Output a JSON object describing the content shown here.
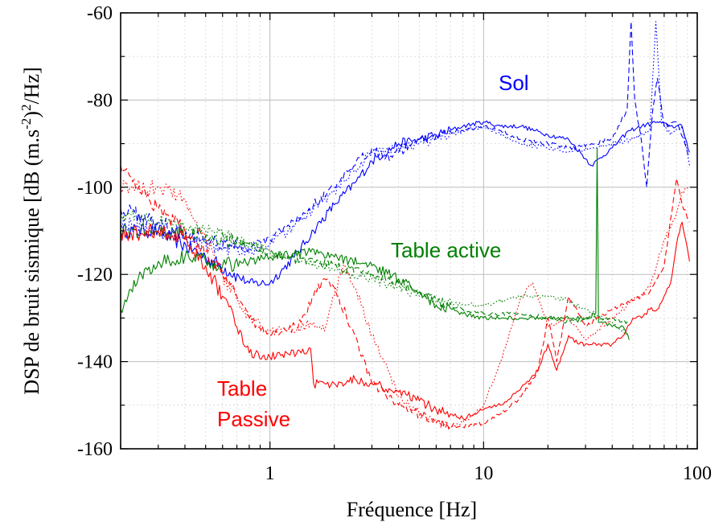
{
  "chart_data": {
    "type": "line",
    "title": "",
    "xlabel": "Fréquence   [Hz]",
    "ylabel_prefix": "DSP de bruit sismique   [dB (m.s",
    "ylabel_sup1": "-2",
    "ylabel_mid": ")",
    "ylabel_sup2": "2",
    "ylabel_suffix": "/Hz]",
    "x_scale": "log",
    "xlim": [
      0.2,
      100
    ],
    "ylim": [
      -160,
      -60
    ],
    "x_tick_labels": [
      "1",
      "10",
      "100"
    ],
    "y_tick_labels": [
      "-60",
      "-80",
      "-100",
      "-120",
      "-140",
      "-160"
    ],
    "grid": "dotted",
    "annotations": [
      {
        "text": "Sol",
        "color": "#0000ff",
        "x": 0.7,
        "y": -78
      },
      {
        "text": "Table active",
        "color": "#008000",
        "x": 0.4,
        "y": -115
      },
      {
        "text": "Table",
        "color": "#ff0000",
        "x": 0.3,
        "y": -143
      },
      {
        "text": "Passive",
        "color": "#ff0000",
        "x": 0.3,
        "y": -151
      }
    ],
    "series": [
      {
        "group": "Sol",
        "color": "#0000ff",
        "style": "solid",
        "x": [
          0.2,
          0.3,
          0.5,
          0.8,
          1.0,
          1.3,
          1.6,
          2.0,
          2.5,
          3.0,
          4.0,
          5.0,
          6.0,
          8.0,
          10.0,
          12.0,
          15.0,
          20.0,
          25.0,
          32.0,
          40.0,
          48.0,
          55.0,
          65.0,
          75.0,
          85.0,
          92.0
        ],
        "y": [
          -110,
          -110,
          -116,
          -122,
          -122,
          -116,
          -110,
          -104,
          -99,
          -94,
          -90,
          -89,
          -88,
          -86,
          -85,
          -86,
          -86,
          -88,
          -89,
          -95,
          -91,
          -87,
          -86,
          -85,
          -86,
          -86,
          -92
        ]
      },
      {
        "group": "Sol",
        "color": "#0000ff",
        "style": "dashed",
        "x": [
          0.2,
          0.3,
          0.5,
          0.8,
          1.0,
          1.3,
          1.6,
          2.0,
          2.5,
          3.0,
          3.5,
          4.0,
          5.0,
          6.0,
          8.0,
          10.0,
          12.0,
          15.0,
          20.0,
          25.0,
          32.0,
          40.0,
          47.0,
          49.0,
          51.0,
          55.0,
          58.0,
          62.0,
          65.0,
          70.0,
          80.0,
          92.0
        ],
        "y": [
          -105,
          -108,
          -112,
          -114,
          -112,
          -108,
          -104,
          -100,
          -95,
          -91,
          -93,
          -92,
          -89,
          -88,
          -87,
          -86,
          -87,
          -89,
          -90,
          -91,
          -90,
          -89,
          -82,
          -62,
          -80,
          -90,
          -100,
          -82,
          -75,
          -86,
          -85,
          -93
        ]
      },
      {
        "group": "Sol",
        "color": "#0000ff",
        "style": "dotted",
        "x": [
          0.2,
          0.3,
          0.5,
          0.8,
          1.0,
          1.3,
          1.6,
          2.0,
          2.5,
          3.0,
          4.0,
          5.0,
          6.0,
          8.0,
          10.0,
          12.0,
          15.0,
          20.0,
          25.0,
          32.0,
          40.0,
          50.0,
          60.0,
          64.0,
          68.0,
          75.0,
          85.0,
          92.0
        ],
        "y": [
          -108,
          -110,
          -113,
          -115,
          -113,
          -109,
          -105,
          -101,
          -96,
          -92,
          -91,
          -90,
          -89,
          -87,
          -86,
          -88,
          -90,
          -91,
          -92,
          -91,
          -90,
          -89,
          -87,
          -62,
          -85,
          -88,
          -86,
          -95
        ]
      },
      {
        "group": "Table active",
        "color": "#008000",
        "style": "solid",
        "x": [
          0.2,
          0.25,
          0.3,
          0.4,
          0.5,
          0.6,
          0.8,
          1.0,
          1.5,
          2.0,
          3.0,
          4.0,
          5.0,
          6.0,
          8.0,
          10.0,
          15.0,
          20.0,
          25.0,
          30.0,
          33.5,
          34.0,
          34.5,
          36.0,
          40.0,
          45.0,
          48.0
        ],
        "y": [
          -128,
          -120,
          -117,
          -116,
          -117,
          -118,
          -117,
          -116,
          -115,
          -116,
          -118,
          -121,
          -124,
          -127,
          -129,
          -130,
          -130,
          -130,
          -130,
          -130,
          -129,
          -91,
          -131,
          -131,
          -132,
          -132,
          -135
        ]
      },
      {
        "group": "Table active",
        "color": "#008000",
        "style": "dashed",
        "x": [
          0.2,
          0.3,
          0.5,
          0.8,
          1.0,
          1.5,
          2.0,
          3.0,
          4.0,
          5.0,
          6.0,
          8.0,
          10.0,
          15.0,
          20.0,
          25.0,
          30.0,
          40.0,
          48.0
        ],
        "y": [
          -110,
          -110,
          -111,
          -113,
          -115,
          -117,
          -118,
          -120,
          -122,
          -124,
          -126,
          -128,
          -129,
          -129,
          -130,
          -131,
          -130,
          -130,
          -131
        ]
      },
      {
        "group": "Table active",
        "color": "#008000",
        "style": "dotted",
        "x": [
          0.2,
          0.3,
          0.5,
          0.8,
          1.0,
          1.5,
          2.0,
          3.0,
          4.0,
          5.0,
          6.0,
          8.0,
          10.0,
          15.0,
          20.0,
          25.0,
          30.0,
          40.0,
          48.0
        ],
        "y": [
          -106,
          -108,
          -110,
          -113,
          -115,
          -117,
          -119,
          -121,
          -123,
          -125,
          -126,
          -127,
          -127,
          -125,
          -125,
          -126,
          -128,
          -131,
          -134
        ]
      },
      {
        "group": "Table Passive",
        "color": "#ff0000",
        "style": "solid",
        "x": [
          0.2,
          0.3,
          0.4,
          0.5,
          0.6,
          0.7,
          0.8,
          1.0,
          1.2,
          1.4,
          1.55,
          1.6,
          1.8,
          2.0,
          2.5,
          3.0,
          4.0,
          5.0,
          6.0,
          7.0,
          8.0,
          9.0,
          10.0,
          12.0,
          15.0,
          18.0,
          20.0,
          22.0,
          25.0,
          28.0,
          30.0,
          35.0,
          40.0,
          45.0,
          50.0,
          55.0,
          60.0,
          65.0,
          70.0,
          75.0,
          80.0,
          85.0,
          92.0
        ],
        "y": [
          -111,
          -110,
          -112,
          -118,
          -125,
          -132,
          -138,
          -139,
          -138,
          -138,
          -137,
          -145,
          -145,
          -145,
          -144,
          -145,
          -147,
          -149,
          -151,
          -152,
          -153,
          -152,
          -151,
          -150,
          -146,
          -142,
          -136,
          -142,
          -134,
          -136,
          -136,
          -136,
          -136,
          -134,
          -130,
          -130,
          -128,
          -128,
          -125,
          -122,
          -113,
          -108,
          -117
        ]
      },
      {
        "group": "Table Passive",
        "color": "#ff0000",
        "style": "dashed",
        "x": [
          0.2,
          0.3,
          0.4,
          0.5,
          0.6,
          0.7,
          0.8,
          1.0,
          1.2,
          1.4,
          1.6,
          1.8,
          2.0,
          2.5,
          3.0,
          4.0,
          5.0,
          6.0,
          8.0,
          10.0,
          12.0,
          15.0,
          18.0,
          20.0,
          22.0,
          25.0,
          30.0,
          40.0,
          50.0,
          60.0,
          70.0,
          80.0,
          85.0,
          92.0
        ],
        "y": [
          -95,
          -105,
          -110,
          -115,
          -120,
          -125,
          -130,
          -134,
          -133,
          -131,
          -125,
          -121,
          -123,
          -134,
          -145,
          -150,
          -152,
          -154,
          -155,
          -154,
          -152,
          -148,
          -142,
          -130,
          -140,
          -125,
          -132,
          -128,
          -126,
          -124,
          -118,
          -98,
          -104,
          -108
        ]
      },
      {
        "group": "Table Passive",
        "color": "#ff0000",
        "style": "dotted",
        "x": [
          0.2,
          0.3,
          0.4,
          0.5,
          0.6,
          0.7,
          0.8,
          1.0,
          1.2,
          1.4,
          1.6,
          1.8,
          2.0,
          2.2,
          2.5,
          3.0,
          4.0,
          5.0,
          6.0,
          7.0,
          8.0,
          10.0,
          12.0,
          15.0,
          17.0,
          20.0,
          25.0,
          30.0,
          40.0,
          50.0,
          60.0,
          70.0,
          80.0,
          85.0,
          92.0
        ],
        "y": [
          -100,
          -100,
          -103,
          -112,
          -120,
          -126,
          -130,
          -133,
          -133,
          -132,
          -131,
          -133,
          -125,
          -118,
          -123,
          -134,
          -148,
          -152,
          -154,
          -155,
          -154,
          -150,
          -140,
          -125,
          -122,
          -132,
          -130,
          -135,
          -130,
          -126,
          -123,
          -112,
          -106,
          -101,
          -100
        ]
      }
    ]
  }
}
